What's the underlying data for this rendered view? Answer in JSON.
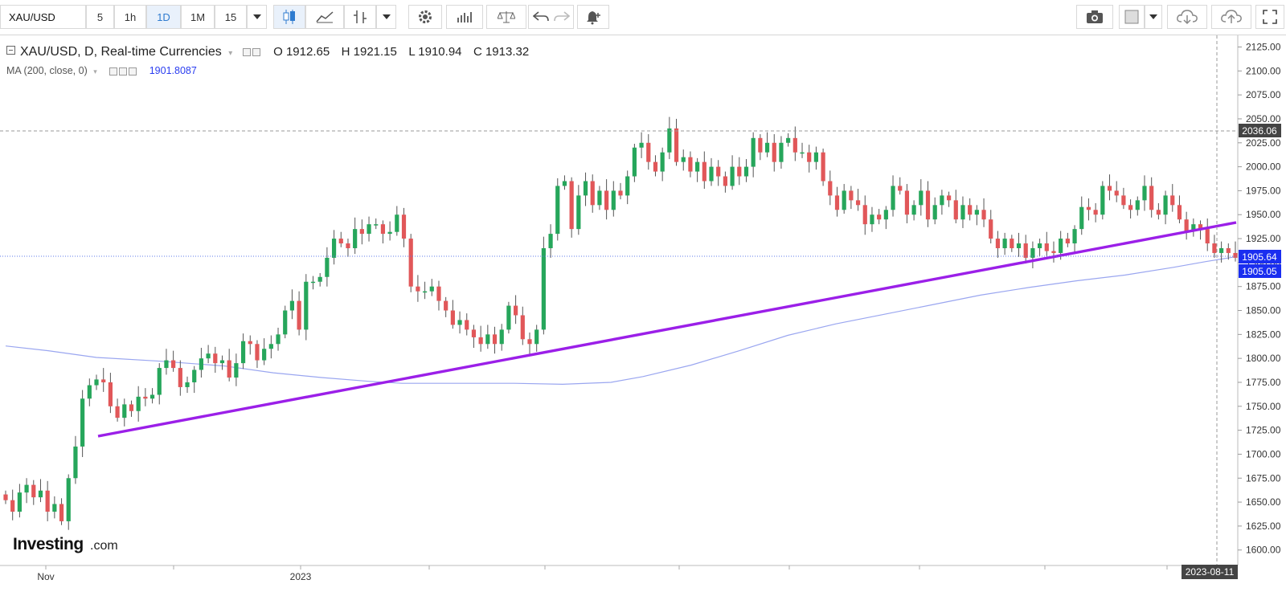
{
  "toolbar": {
    "symbol": "XAU/USD",
    "intervals": [
      "5",
      "1h",
      "1D",
      "1M",
      "15"
    ],
    "active_interval": "1D"
  },
  "legend": {
    "title": "XAU/USD, D, Real-time Currencies",
    "open": "O 1912.65",
    "high": "H 1921.15",
    "low": "L 1910.94",
    "close": "C 1913.32",
    "ma_label": "MA (200, close, 0)",
    "ma_value": "1901.8087"
  },
  "logo": {
    "brand": "Investing",
    "suffix": ".com"
  },
  "colors": {
    "up": "#26a65b",
    "down": "#e15759",
    "trendline": "#9b1fe8",
    "ma": "#9aa6f0",
    "price_tag": "#1a2ef0",
    "crosshair_tag": "#444444"
  },
  "chart_data": {
    "type": "candlestick",
    "title": "XAU/USD, D, Real-time Currencies",
    "x_tick_labels": [
      "Nov",
      "2023"
    ],
    "y_ticks": [
      "2125.00",
      "2100.00",
      "2075.00",
      "2050.00",
      "2025.00",
      "2000.00",
      "1975.00",
      "1950.00",
      "1925.00",
      "1900.00",
      "1875.00",
      "1850.00",
      "1825.00",
      "1800.00",
      "1775.00",
      "1750.00",
      "1725.00",
      "1700.00",
      "1675.00",
      "1650.00",
      "1625.00",
      "1600.00"
    ],
    "ylim": [
      1593,
      2135
    ],
    "price_labels": {
      "crosshair_price": "2036.06",
      "last_price_ref": "1905.64",
      "last_close": "1905.05"
    },
    "date_label": "2023-08-11",
    "closes": [
      1652,
      1640,
      1660,
      1668,
      1655,
      1662,
      1640,
      1648,
      1630,
      1675,
      1708,
      1758,
      1772,
      1778,
      1775,
      1750,
      1738,
      1752,
      1745,
      1760,
      1758,
      1762,
      1790,
      1798,
      1790,
      1770,
      1775,
      1788,
      1800,
      1805,
      1795,
      1798,
      1780,
      1795,
      1818,
      1815,
      1798,
      1810,
      1815,
      1825,
      1850,
      1860,
      1830,
      1880,
      1880,
      1885,
      1905,
      1925,
      1920,
      1915,
      1935,
      1930,
      1940,
      1940,
      1930,
      1932,
      1950,
      1925,
      1875,
      1870,
      1870,
      1875,
      1860,
      1850,
      1835,
      1840,
      1830,
      1822,
      1815,
      1825,
      1815,
      1830,
      1855,
      1845,
      1820,
      1815,
      1830,
      1915,
      1930,
      1980,
      1985,
      1935,
      1970,
      1985,
      1960,
      1975,
      1955,
      1975,
      1970,
      1990,
      2020,
      2025,
      2005,
      1995,
      2015,
      2040,
      2005,
      2010,
      1995,
      2005,
      1985,
      2000,
      1990,
      1980,
      2000,
      1990,
      2000,
      2030,
      2015,
      2025,
      2005,
      2025,
      2030,
      2015,
      2015,
      2005,
      2015,
      1985,
      1970,
      1955,
      1975,
      1965,
      1960,
      1940,
      1950,
      1945,
      1955,
      1980,
      1975,
      1950,
      1960,
      1975,
      1945,
      1960,
      1970,
      1965,
      1945,
      1960,
      1950,
      1955,
      1945,
      1925,
      1915,
      1925,
      1915,
      1920,
      1905,
      1915,
      1920,
      1912,
      1910,
      1925,
      1920,
      1935,
      1958,
      1955,
      1950,
      1980,
      1975,
      1970,
      1960,
      1955,
      1965,
      1980,
      1955,
      1950,
      1970,
      1960,
      1945,
      1933,
      1940,
      1935,
      1920,
      1910,
      1915,
      1910,
      1905
    ]
  }
}
